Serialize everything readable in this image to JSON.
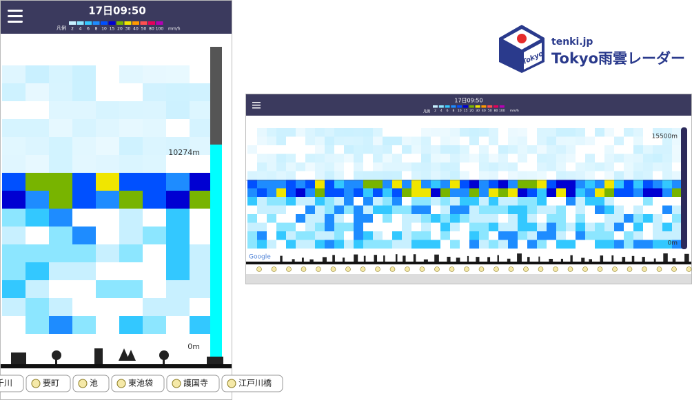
{
  "phone": {
    "time": "17日09:50",
    "legend": {
      "label": "凡例",
      "values": [
        2,
        4,
        6,
        8,
        10,
        15,
        20,
        30,
        40,
        50,
        80,
        100
      ],
      "unit": "mm/h",
      "colors": [
        "#c8f0ff",
        "#8ce6ff",
        "#33c8ff",
        "#1e8cff",
        "#0050ff",
        "#0000d2",
        "#78b400",
        "#f0e600",
        "#ff9900",
        "#ff5050",
        "#e6005a",
        "#b400b4"
      ]
    },
    "altitude_top": "10274m",
    "altitude_bottom": "0m",
    "stations": [
      "千川",
      "要町",
      "池",
      "東池袋",
      "護国寺",
      "江戸川橋"
    ]
  },
  "logo": {
    "site": "tenki.jp",
    "title": "Tokyo雨雲レーダー",
    "badge": "Tokyo"
  },
  "tablet": {
    "time": "17日09:50",
    "legend": {
      "label": "凡例",
      "values": [
        2,
        4,
        6,
        8,
        10,
        15,
        20,
        30,
        40,
        50,
        80,
        100
      ],
      "unit": "mm/h"
    },
    "altitude_top": "15500m",
    "altitude_bottom": "0m",
    "map_credit": "Google"
  }
}
